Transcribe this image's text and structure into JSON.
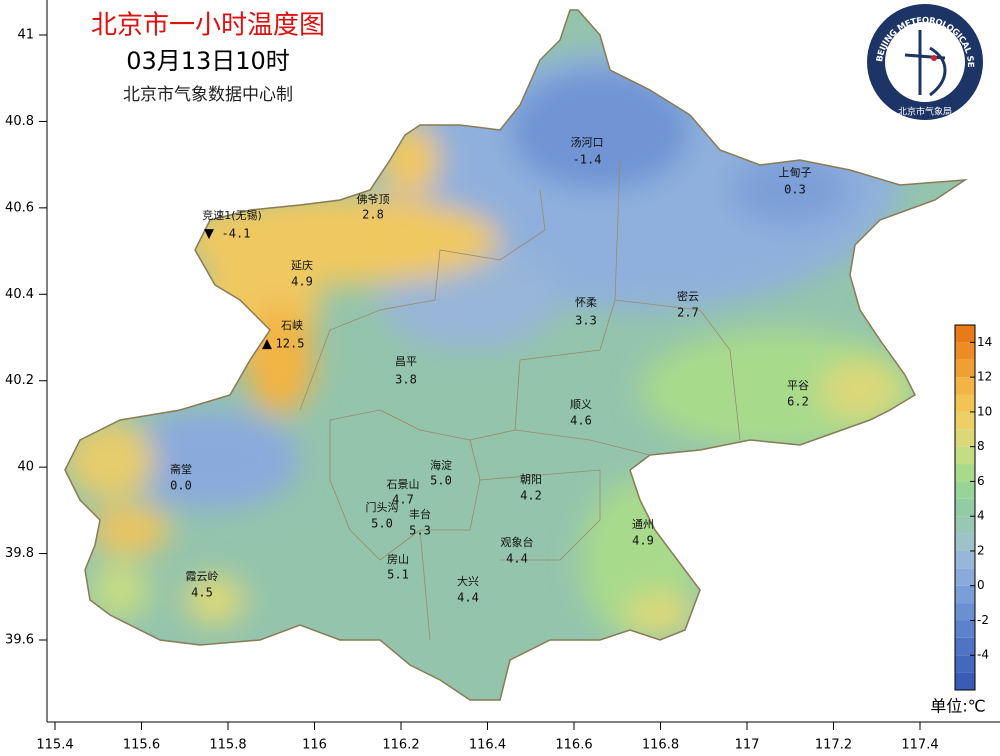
{
  "header": {
    "title": "北京市一小时温度图",
    "time": "03月13日10时",
    "producer": "北京市气象数据中心制"
  },
  "logo": {
    "ring_text": "BEIJING METEOROLOGICAL SERVICE",
    "name": "北京市气象局"
  },
  "axes": {
    "lon_ticks": [
      115.4,
      115.6,
      115.8,
      116,
      116.2,
      116.4,
      116.6,
      116.8,
      117,
      117.2,
      117.4
    ],
    "lat_ticks": [
      41,
      40.8,
      40.6,
      40.4,
      40.2,
      40,
      39.8,
      39.6
    ]
  },
  "stations": [
    {
      "name": "汤河口",
      "value": "-1.4"
    },
    {
      "name": "上甸子",
      "value": "0.3"
    },
    {
      "name": "佛爷顶",
      "value": "2.8"
    },
    {
      "name": "竞速1(无锡)",
      "value": "-4.1"
    },
    {
      "name": "延庆",
      "value": "4.9"
    },
    {
      "name": "石峡",
      "value": "12.5"
    },
    {
      "name": "昌平",
      "value": "3.8"
    },
    {
      "name": "怀柔",
      "value": "3.3"
    },
    {
      "name": "密云",
      "value": "2.7"
    },
    {
      "name": "平谷",
      "value": "6.2"
    },
    {
      "name": "顺义",
      "value": "4.6"
    },
    {
      "name": "海淀",
      "value": "5.0"
    },
    {
      "name": "朝阳",
      "value": "4.2"
    },
    {
      "name": "石景山",
      "value": "4.7"
    },
    {
      "name": "门头沟",
      "value": "5.0"
    },
    {
      "name": "丰台",
      "value": "5.3"
    },
    {
      "name": "观象台",
      "value": "4.4"
    },
    {
      "name": "通州",
      "value": "4.9"
    },
    {
      "name": "斋堂",
      "value": "0.0"
    },
    {
      "name": "房山",
      "value": "5.1"
    },
    {
      "name": "大兴",
      "value": "4.4"
    },
    {
      "name": "霞云岭",
      "value": "4.5"
    }
  ],
  "colorbar": {
    "lim": [
      -6,
      15
    ],
    "ticks": [
      -4,
      -2,
      0,
      2,
      4,
      6,
      8,
      10,
      12,
      14
    ],
    "colors": [
      "#3a5cb4",
      "#4468bc",
      "#5074c4",
      "#5c82cc",
      "#6a90d2",
      "#7a9ed8",
      "#8aaadc",
      "#98b6d8",
      "#9ec2c8",
      "#98c8b4",
      "#92cca4",
      "#96d498",
      "#a8da8c",
      "#c4dc84",
      "#dcd878",
      "#ecd066",
      "#f2c456",
      "#f2b444",
      "#f0a032",
      "#ec8c22",
      "#e87a18"
    ],
    "unit": "单位:℃"
  }
}
